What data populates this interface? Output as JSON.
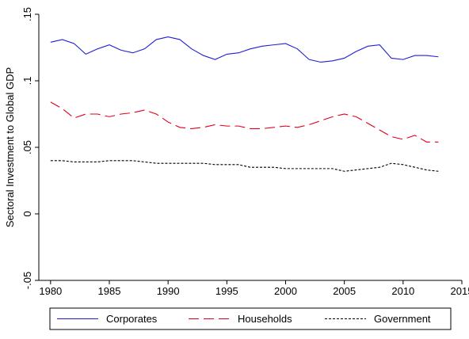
{
  "chart_data": {
    "type": "line",
    "title": "",
    "xlabel": "",
    "ylabel": "Sectoral Investment to Global GDP",
    "xlim": [
      1979,
      2015
    ],
    "ylim": [
      -0.05,
      0.15
    ],
    "xticks": [
      "1980",
      "1985",
      "1990",
      "1995",
      "2000",
      "2005",
      "2010",
      "2015"
    ],
    "yticks": [
      "-.05",
      "0",
      ".05",
      ".1",
      ".15"
    ],
    "grid": false,
    "legend_position": "bottom",
    "x": [
      1980,
      1981,
      1982,
      1983,
      1984,
      1985,
      1986,
      1987,
      1988,
      1989,
      1990,
      1991,
      1992,
      1993,
      1994,
      1995,
      1996,
      1997,
      1998,
      1999,
      2000,
      2001,
      2002,
      2003,
      2004,
      2005,
      2006,
      2007,
      2008,
      2009,
      2010,
      2011,
      2012,
      2013
    ],
    "series": [
      {
        "name": "Corporates",
        "color": "#1f1fd6",
        "dash": "solid",
        "values": [
          0.129,
          0.131,
          0.128,
          0.12,
          0.124,
          0.127,
          0.123,
          0.121,
          0.124,
          0.131,
          0.133,
          0.131,
          0.124,
          0.119,
          0.116,
          0.12,
          0.121,
          0.124,
          0.126,
          0.127,
          0.128,
          0.124,
          0.116,
          0.114,
          0.115,
          0.117,
          0.122,
          0.126,
          0.127,
          0.117,
          0.116,
          0.119,
          0.119,
          0.118
        ]
      },
      {
        "name": "Households",
        "color": "#e0001a",
        "dash": "longdash",
        "values": [
          0.084,
          0.079,
          0.072,
          0.075,
          0.075,
          0.073,
          0.075,
          0.076,
          0.078,
          0.075,
          0.069,
          0.065,
          0.064,
          0.065,
          0.067,
          0.066,
          0.066,
          0.064,
          0.064,
          0.065,
          0.066,
          0.065,
          0.067,
          0.07,
          0.073,
          0.075,
          0.073,
          0.068,
          0.063,
          0.058,
          0.056,
          0.059,
          0.054,
          0.054
        ]
      },
      {
        "name": "Government",
        "color": "#000000",
        "dash": "shortdash",
        "values": [
          0.04,
          0.04,
          0.039,
          0.039,
          0.039,
          0.04,
          0.04,
          0.04,
          0.039,
          0.038,
          0.038,
          0.038,
          0.038,
          0.038,
          0.037,
          0.037,
          0.037,
          0.035,
          0.035,
          0.035,
          0.034,
          0.034,
          0.034,
          0.034,
          0.034,
          0.032,
          0.033,
          0.034,
          0.035,
          0.038,
          0.037,
          0.035,
          0.033,
          0.032
        ]
      }
    ]
  }
}
